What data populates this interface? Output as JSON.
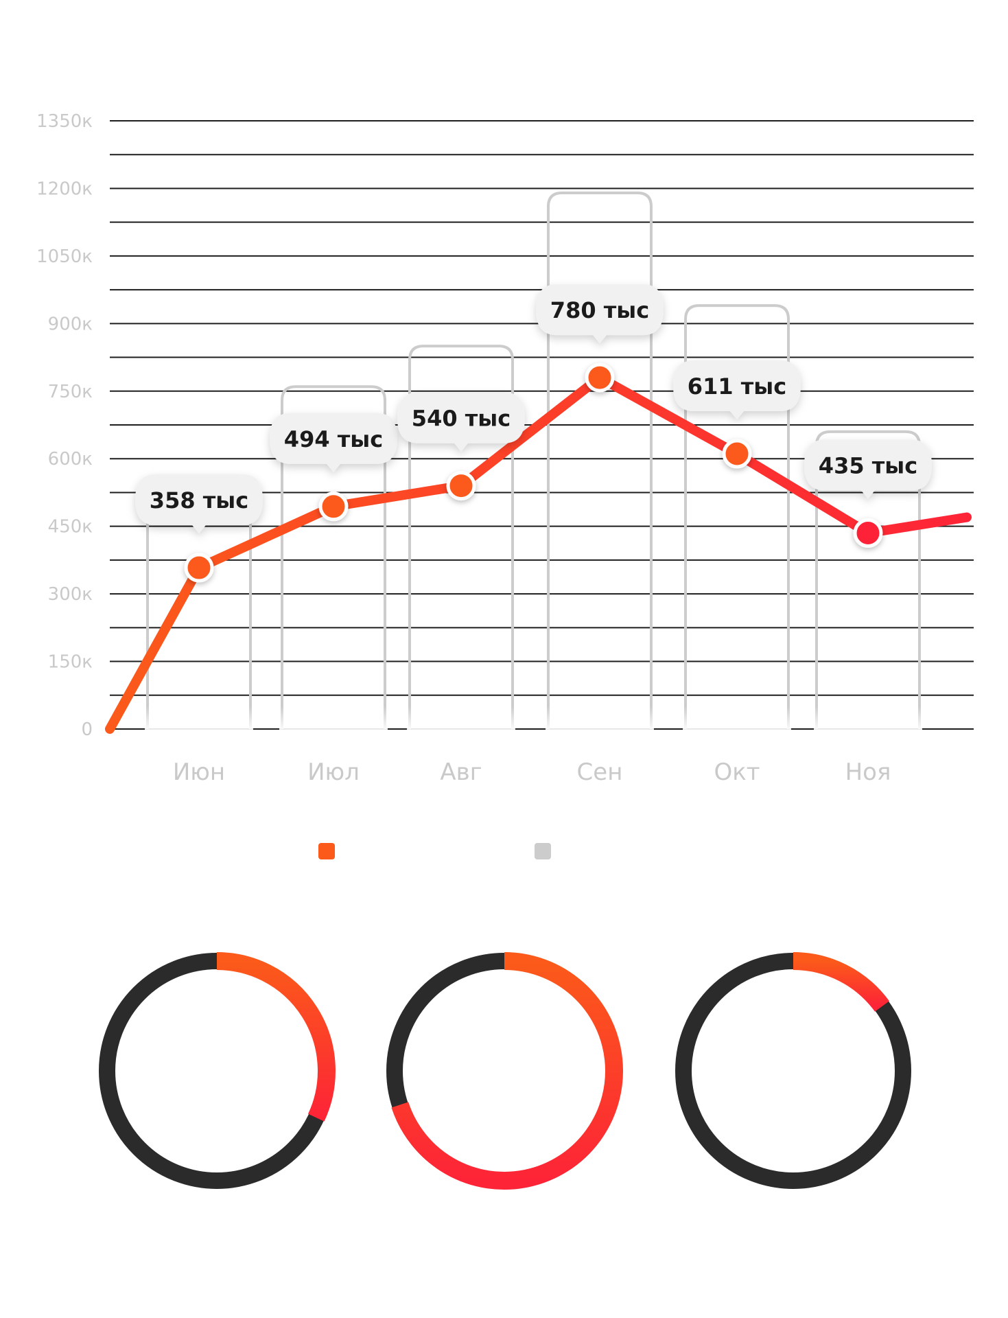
{
  "chart_data": [
    {
      "type": "line",
      "categories": [
        "Июн",
        "Июл",
        "Авг",
        "Сен",
        "Окт",
        "Ноя"
      ],
      "series": [
        {
          "values": [
            358,
            494,
            540,
            780,
            611,
            435
          ]
        },
        {
          "values": [
            550,
            760,
            850,
            1190,
            940,
            660
          ]
        }
      ],
      "data_labels": [
        "358 тыс",
        "494 тыс",
        "540 тыс",
        "780 тыс",
        "611 тыс",
        "435 тыс"
      ],
      "y_ticks": [
        "0",
        "150к",
        "300к",
        "450к",
        "600к",
        "750к",
        "900к",
        "1050к",
        "1200к",
        "1350к"
      ],
      "ylim": [
        0,
        1350
      ],
      "line_start_value": 0,
      "line_end_value": 470,
      "grid": true,
      "legend": [
        {
          "color": "#fb5a1a"
        },
        {
          "color": "#cccccc"
        }
      ],
      "colors": {
        "line_start": "#fb5a1a",
        "line_end": "#fd2437",
        "grid": "#1e1e1e",
        "bar_outline": "#cccccc",
        "tick_text": "#c9c9c9",
        "label_bubble": "#f1f1f1",
        "label_text": "#1b1b1b"
      }
    },
    {
      "type": "pie",
      "variant": "donut",
      "rings": [
        {
          "value": 0.32
        },
        {
          "value": 0.7
        },
        {
          "value": 0.15
        }
      ],
      "colors": {
        "track": "#2b2b2b",
        "arc_start": "#fb5a1a",
        "arc_end": "#fd2437"
      }
    }
  ]
}
